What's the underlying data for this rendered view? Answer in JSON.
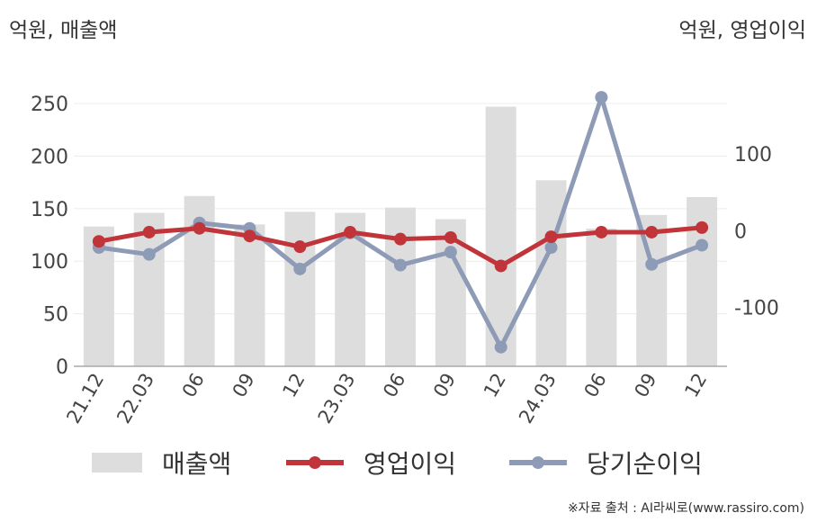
{
  "unit_left": "억원, 매출액",
  "unit_right": "억원, 영업이익",
  "source": "※자료 출처 : AI라씨로(www.rassiro.com)",
  "legend": [
    {
      "label": "매출액"
    },
    {
      "label": "영업이익"
    },
    {
      "label": "당기순이익"
    }
  ],
  "chart_data": {
    "type": "bar",
    "categories": [
      "21.12",
      "22.03",
      "06",
      "09",
      "12",
      "23.03",
      "06",
      "09",
      "12",
      "24.03",
      "06",
      "09",
      "12"
    ],
    "left_axis": {
      "ticks": [
        0,
        50,
        100,
        150,
        200,
        250
      ],
      "ylim": [
        0,
        280
      ]
    },
    "right_axis": {
      "ticks": [
        -100,
        0,
        100
      ],
      "ylim": [
        -177,
        207
      ]
    },
    "series": [
      {
        "name": "매출액",
        "type": "bar",
        "axis": "left",
        "color": "#dddddd",
        "values": [
          133,
          146,
          162,
          135,
          147,
          146,
          151,
          140,
          247,
          177,
          131,
          144,
          161
        ]
      },
      {
        "name": "영업이익",
        "type": "line",
        "axis": "right",
        "color": "#c0343a",
        "values": [
          -14,
          -2,
          3,
          -7,
          -21,
          -2,
          -11,
          -9,
          -46,
          -8,
          -2,
          -2,
          4
        ]
      },
      {
        "name": "당기순이익",
        "type": "line",
        "axis": "right",
        "color": "#8e9bb6",
        "values": [
          -22,
          -31,
          10,
          3,
          -50,
          -3,
          -45,
          -28,
          -152,
          -22,
          174,
          -44,
          -19
        ]
      }
    ],
    "grid": true,
    "legend_position": "bottom"
  }
}
